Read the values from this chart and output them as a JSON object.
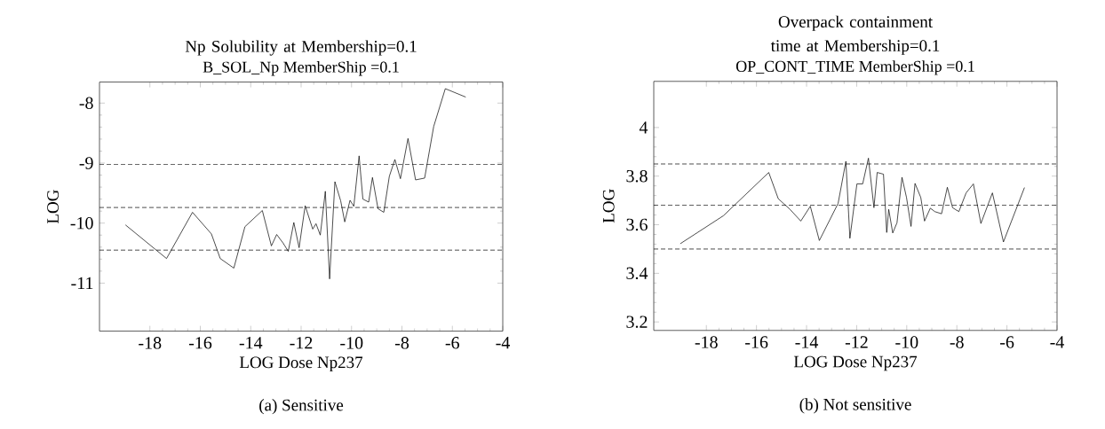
{
  "chart_data": [
    {
      "type": "line",
      "title": "Np Solubility at Membership=0.1",
      "subtitle": "B_SOL_Np MemberShip =0.1",
      "xlabel": "LOG Dose Np237",
      "ylabel": "LOG",
      "annotations": [
        "(a) Sensitive"
      ],
      "x": [
        -18.97,
        -17.34,
        -16.31,
        -15.56,
        -15.21,
        -14.67,
        -14.23,
        -13.54,
        -13.18,
        -12.97,
        -12.72,
        -12.51,
        -12.29,
        -12.08,
        -11.84,
        -11.54,
        -11.41,
        -11.24,
        -11.04,
        -10.87,
        -10.66,
        -10.43,
        -10.27,
        -10.06,
        -9.91,
        -9.7,
        -9.55,
        -9.32,
        -9.17,
        -8.95,
        -8.72,
        -8.5,
        -8.28,
        -8.06,
        -7.76,
        -7.46,
        -7.1,
        -6.74,
        -6.28,
        -5.47
      ],
      "values": [
        -10.03,
        -10.59,
        -9.82,
        -10.18,
        -10.59,
        -10.75,
        -10.06,
        -9.79,
        -10.38,
        -10.19,
        -10.33,
        -10.47,
        -9.99,
        -10.41,
        -9.71,
        -10.1,
        -10.01,
        -10.2,
        -9.47,
        -10.93,
        -9.31,
        -9.63,
        -9.98,
        -9.62,
        -9.72,
        -8.88,
        -9.6,
        -9.65,
        -9.24,
        -9.76,
        -9.82,
        -9.22,
        -8.94,
        -9.26,
        -8.59,
        -9.28,
        -9.25,
        -8.39,
        -7.76,
        -7.9
      ],
      "color": "#000000",
      "line_style": "solid",
      "marker": "none",
      "grid": false,
      "xlim": [
        -20,
        -4
      ],
      "ylim": [
        -11.8,
        -7.65
      ],
      "xticks": [
        -18,
        -16,
        -14,
        -12,
        -10,
        -8,
        -6,
        -4
      ],
      "yticks": [
        -11,
        -10,
        -9,
        -8
      ],
      "ref_lines": [
        {
          "axis": "y",
          "value": -9.02,
          "line_style": "dashed"
        },
        {
          "axis": "y",
          "value": -9.74,
          "line_style": "dashed"
        },
        {
          "axis": "y",
          "value": -10.45,
          "line_style": "dashed"
        }
      ]
    },
    {
      "type": "line",
      "title": "Overpack containment time at Membership=0.1",
      "subtitle": "OP_CONT_TIME MemberShip =0.1",
      "xlabel": "LOG Dose Np237",
      "ylabel": "LOG",
      "annotations": [
        "(b) Not sensitive"
      ],
      "x": [
        -19.04,
        -17.32,
        -15.51,
        -15.13,
        -14.66,
        -14.23,
        -13.85,
        -13.49,
        -12.74,
        -12.43,
        -12.27,
        -11.99,
        -11.76,
        -11.53,
        -11.31,
        -11.18,
        -10.93,
        -10.8,
        -10.72,
        -10.56,
        -10.39,
        -10.19,
        -10.01,
        -9.83,
        -9.67,
        -9.44,
        -9.29,
        -9.06,
        -8.88,
        -8.61,
        -8.38,
        -8.17,
        -7.92,
        -7.63,
        -7.34,
        -7.04,
        -6.58,
        -6.14,
        -5.3
      ],
      "values": [
        3.522,
        3.637,
        3.815,
        3.707,
        3.663,
        3.615,
        3.676,
        3.535,
        3.688,
        3.861,
        3.544,
        3.768,
        3.768,
        3.874,
        3.67,
        3.815,
        3.808,
        3.568,
        3.663,
        3.566,
        3.608,
        3.795,
        3.712,
        3.593,
        3.77,
        3.712,
        3.615,
        3.668,
        3.654,
        3.645,
        3.754,
        3.67,
        3.654,
        3.731,
        3.768,
        3.605,
        3.731,
        3.529,
        3.753
      ],
      "color": "#000000",
      "line_style": "solid",
      "marker": "none",
      "grid": false,
      "xlim": [
        -20.1,
        -4
      ],
      "ylim": [
        3.165,
        4.19
      ],
      "xticks": [
        -18,
        -16,
        -14,
        -12,
        -10,
        -8,
        -6,
        -4
      ],
      "yticks": [
        3.2,
        3.4,
        3.6,
        3.8,
        4
      ],
      "ref_lines": [
        {
          "axis": "y",
          "value": 3.85,
          "line_style": "dashed"
        },
        {
          "axis": "y",
          "value": 3.68,
          "line_style": "dashed"
        },
        {
          "axis": "y",
          "value": 3.5,
          "line_style": "dashed"
        }
      ]
    }
  ]
}
